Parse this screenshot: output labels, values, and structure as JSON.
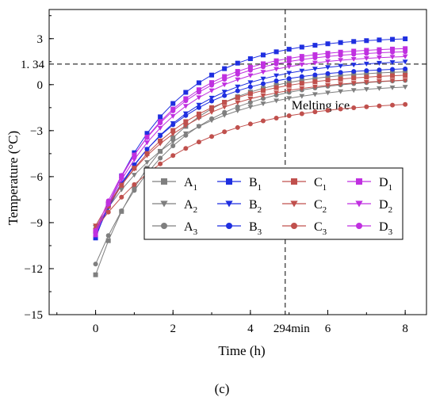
{
  "chart_data": {
    "type": "line",
    "xlabel": "Time (h)",
    "ylabel": "Temperature (°C)",
    "caption": "(c)",
    "xlim": [
      -1.2,
      8.55
    ],
    "ylim": [
      -15,
      4.9
    ],
    "xticks": [
      0,
      2,
      4,
      6,
      8
    ],
    "yticks": [
      3,
      0,
      -3,
      -6,
      -9,
      -12,
      -15
    ],
    "extra_ytick": {
      "value": 1.34,
      "label": "1. 34"
    },
    "extra_xtick": {
      "value": 4.9,
      "label": "294min"
    },
    "ref_lines": {
      "horizontal": 1.34,
      "vertical": 4.9
    },
    "annotation": "Melting ice",
    "x": [
      0,
      0.33,
      0.67,
      1.0,
      1.33,
      1.67,
      2.0,
      2.33,
      2.67,
      3.0,
      3.33,
      3.67,
      4.0,
      4.33,
      4.67,
      5.0,
      5.33,
      5.67,
      6.0,
      6.33,
      6.67,
      7.0,
      7.33,
      7.67,
      8.0
    ],
    "series": [
      {
        "name": "A1",
        "color": "#7f7f7f",
        "marker": "square",
        "start": -12.4,
        "end": 1.0,
        "k": 0.55
      },
      {
        "name": "A2",
        "color": "#7f7f7f",
        "marker": "triangle-down",
        "start": -9.3,
        "end": 0.1,
        "k": 0.45
      },
      {
        "name": "A3",
        "color": "#7f7f7f",
        "marker": "circle",
        "start": -11.7,
        "end": 0.5,
        "k": 0.5
      },
      {
        "name": "B1",
        "color": "#1f2fe0",
        "marker": "square",
        "start": -10.0,
        "end": 3.15,
        "k": 0.55
      },
      {
        "name": "B2",
        "color": "#1f2fe0",
        "marker": "triangle-down",
        "start": -9.8,
        "end": 1.7,
        "k": 0.5
      },
      {
        "name": "B3",
        "color": "#1f2fe0",
        "marker": "circle",
        "start": -9.6,
        "end": 1.2,
        "k": 0.52
      },
      {
        "name": "C1",
        "color": "#c0504d",
        "marker": "square",
        "start": -9.5,
        "end": 0.8,
        "k": 0.5
      },
      {
        "name": "C2",
        "color": "#c0504d",
        "marker": "triangle-down",
        "start": -9.2,
        "end": 0.5,
        "k": 0.48
      },
      {
        "name": "C3",
        "color": "#c0504d",
        "marker": "circle",
        "start": -9.4,
        "end": -1.0,
        "k": 0.42
      },
      {
        "name": "D1",
        "color": "#c030e0",
        "marker": "square",
        "start": -9.8,
        "end": 2.5,
        "k": 0.55
      },
      {
        "name": "D2",
        "color": "#c030e0",
        "marker": "triangle-down",
        "start": -9.7,
        "end": 2.0,
        "k": 0.53
      },
      {
        "name": "D3",
        "color": "#c030e0",
        "marker": "circle",
        "start": -9.5,
        "end": 2.3,
        "k": 0.54
      }
    ],
    "legend": {
      "placement": "center",
      "entries": [
        {
          "base": "A",
          "sub": "1",
          "series": 0
        },
        {
          "base": "B",
          "sub": "1",
          "series": 3
        },
        {
          "base": "C",
          "sub": "1",
          "series": 6
        },
        {
          "base": "D",
          "sub": "1",
          "series": 9
        },
        {
          "base": "A",
          "sub": "2",
          "series": 1
        },
        {
          "base": "B",
          "sub": "2",
          "series": 4
        },
        {
          "base": "C",
          "sub": "2",
          "series": 7
        },
        {
          "base": "D",
          "sub": "2",
          "series": 10
        },
        {
          "base": "A",
          "sub": "3",
          "series": 2
        },
        {
          "base": "B",
          "sub": "3",
          "series": 5
        },
        {
          "base": "C",
          "sub": "3",
          "series": 8
        },
        {
          "base": "D",
          "sub": "3",
          "series": 11
        }
      ]
    }
  }
}
